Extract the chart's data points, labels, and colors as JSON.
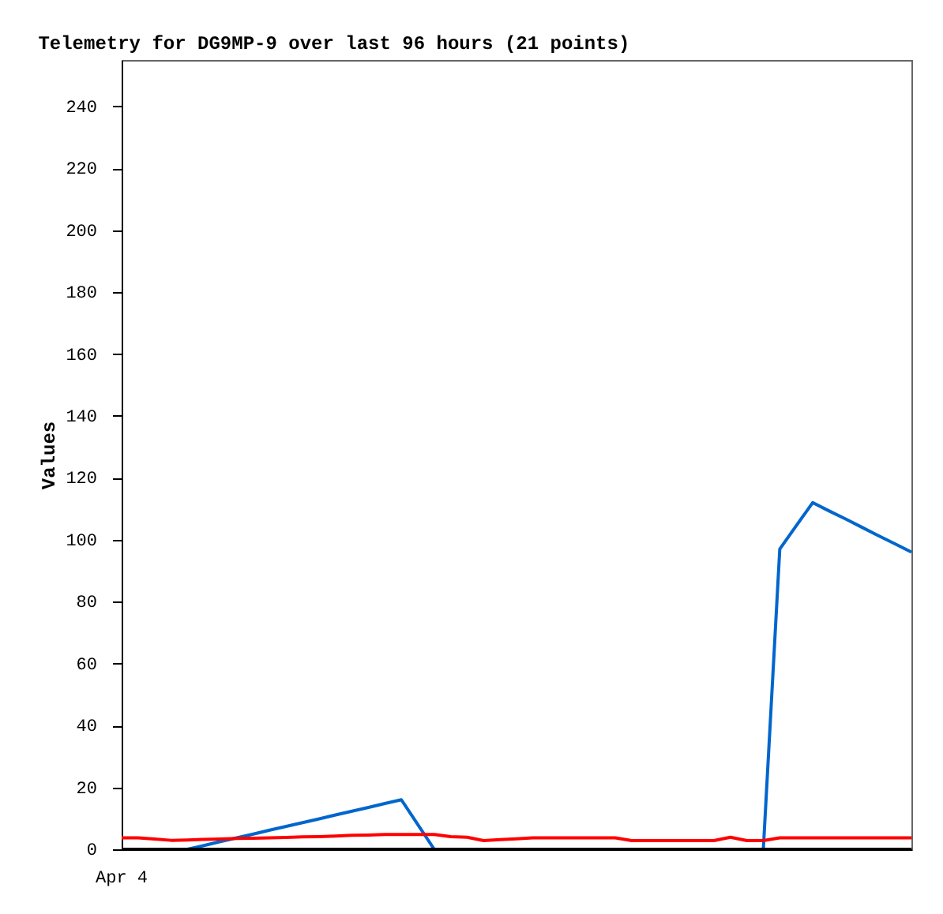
{
  "chart_data": {
    "type": "line",
    "title": "Telemetry for DG9MP-9 over last 96 hours (21 points)",
    "ylabel": "Values",
    "annotations": [
      "Apr 4"
    ],
    "categories": [
      null,
      null,
      null,
      null,
      null,
      null,
      null,
      null,
      null,
      null,
      null,
      null,
      null,
      null,
      null,
      null,
      null,
      null,
      null,
      null,
      null,
      null,
      null,
      null,
      null,
      null,
      null,
      null,
      null,
      null,
      null,
      null,
      null,
      null,
      null,
      null,
      null,
      null,
      null,
      null,
      null,
      null,
      null,
      null,
      null,
      null,
      null,
      null,
      null
    ],
    "ylim": [
      0,
      255
    ],
    "yticks": [
      0,
      20,
      40,
      60,
      80,
      100,
      120,
      140,
      160,
      180,
      200,
      220,
      240
    ],
    "grid": false,
    "marker": "none",
    "line_style": "solid",
    "series": [
      {
        "color": "#0066cc",
        "values": [
          null,
          null,
          null,
          null,
          0,
          1.2,
          2.5,
          3.7,
          4.9,
          6.2,
          7.4,
          8.6,
          9.8,
          11.1,
          12.3,
          13.5,
          14.8,
          16,
          8,
          0,
          0,
          0,
          0,
          0,
          0,
          0,
          0,
          0,
          0,
          0,
          0,
          0,
          0,
          0,
          0,
          0,
          0,
          0,
          0,
          0,
          97,
          104.5,
          112,
          109.3,
          106.7,
          104,
          101.3,
          98.7,
          96
        ]
      },
      {
        "color": "#000000",
        "values": [
          0,
          0,
          0,
          0,
          0,
          0,
          0,
          0,
          0,
          0,
          0,
          0,
          0,
          0,
          0,
          0,
          0,
          0,
          0,
          0,
          0,
          0,
          0,
          0,
          0,
          0,
          0,
          0,
          0,
          0,
          0,
          0,
          0,
          0,
          0,
          0,
          0,
          0,
          0,
          0,
          0,
          0,
          0,
          0,
          0,
          0,
          0,
          0,
          0
        ]
      },
      {
        "color": "#ff0000",
        "values": [
          3.7,
          3.7,
          3.3,
          2.9,
          3.0,
          3.2,
          3.3,
          3.5,
          3.6,
          3.7,
          3.8,
          4.0,
          4.1,
          4.3,
          4.5,
          4.6,
          4.8,
          4.8,
          4.8,
          4.8,
          4.1,
          3.9,
          2.8,
          3.1,
          3.4,
          3.7,
          3.7,
          3.7,
          3.7,
          3.7,
          3.7,
          2.8,
          2.8,
          2.8,
          2.8,
          2.8,
          2.8,
          3.9,
          2.8,
          2.8,
          3.7,
          3.7,
          3.7,
          3.7,
          3.7,
          3.7,
          3.7,
          3.7,
          3.7
        ]
      }
    ]
  }
}
